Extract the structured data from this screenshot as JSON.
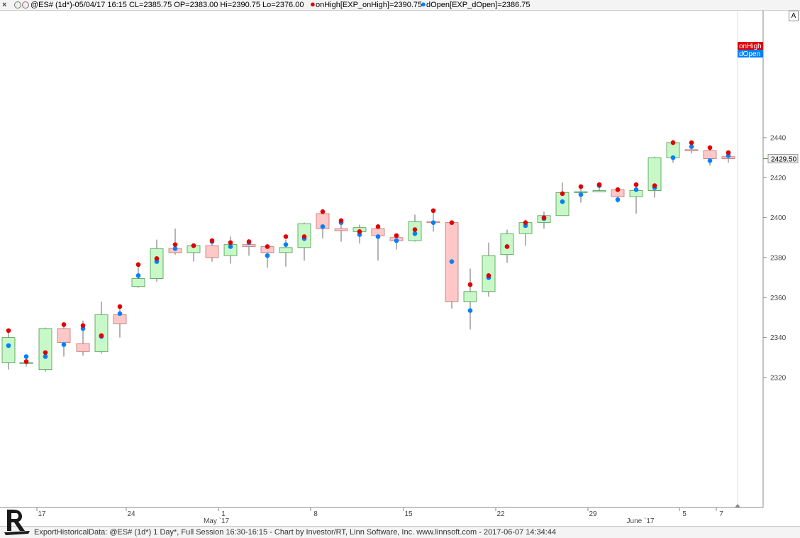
{
  "header": {
    "close_glyph": "×",
    "symbol_info": "@ES# (1d*)-05/04/17 16:15 CL=2385.75 OP=2383.00 Hi=2390.75 Lo=2376.00",
    "onhigh_label": "onHigh[EXP_onHigh]=2390.75",
    "dopen_label": "dOpen[EXP_dOpen]=2386.75",
    "scale_button": "A"
  },
  "colors": {
    "up_fill": "#c8f8c8",
    "down_fill": "#ffc8c8",
    "candle_border_up": "#4a9a4a",
    "candle_border_down": "#c07070",
    "wick": "#8c8c8c",
    "onhigh_dot": "#e00000",
    "dopen_dot": "#0080ff"
  },
  "chart_data": {
    "type": "candlestick",
    "ylim": [
      2318,
      2442
    ],
    "y_ticks": [
      "2440",
      "2420",
      "2400",
      "2380",
      "2360",
      "2340",
      "2320"
    ],
    "x_ticks": [
      "17",
      "24",
      "1",
      "8",
      "15",
      "22",
      "29",
      "5",
      "7"
    ],
    "month_labels": [
      "May `17",
      "June `17"
    ],
    "last_price_label": "2429.50",
    "legend": [
      "onHigh",
      "dOpen"
    ],
    "candles": [
      {
        "o": 2327.5,
        "h": 2343.5,
        "l": 2324,
        "c": 2340,
        "onHigh": 2343.5,
        "dOpen": 2336
      },
      {
        "o": 2327.5,
        "h": 2330,
        "l": 2325.5,
        "c": 2327.5,
        "onHigh": 2328,
        "dOpen": 2330.5
      },
      {
        "o": 2324,
        "h": 2345,
        "l": 2323,
        "c": 2344.5,
        "onHigh": 2332.5,
        "dOpen": 2330.5
      },
      {
        "o": 2344.5,
        "h": 2346.5,
        "l": 2330.5,
        "c": 2337.5,
        "onHigh": 2346.5,
        "dOpen": 2336.5
      },
      {
        "o": 2337,
        "h": 2348.5,
        "l": 2331,
        "c": 2333,
        "onHigh": 2346,
        "dOpen": 2344.5
      },
      {
        "o": 2333,
        "h": 2358,
        "l": 2332,
        "c": 2351.5,
        "onHigh": 2341,
        "dOpen": 2340.5
      },
      {
        "o": 2351.5,
        "h": 2356,
        "l": 2340,
        "c": 2347,
        "onHigh": 2355.5,
        "dOpen": 2352
      },
      {
        "o": 2365.5,
        "h": 2377,
        "l": 2365,
        "c": 2369.5,
        "onHigh": 2376.5,
        "dOpen": 2371
      },
      {
        "o": 2369.5,
        "h": 2389,
        "l": 2368,
        "c": 2384.5,
        "onHigh": 2379.5,
        "dOpen": 2378
      },
      {
        "o": 2384.5,
        "h": 2394.5,
        "l": 2381.5,
        "c": 2382.5,
        "onHigh": 2386.5,
        "dOpen": 2384.5
      },
      {
        "o": 2382.5,
        "h": 2386.5,
        "l": 2378,
        "c": 2386,
        "onHigh": 2386,
        "dOpen": 2386
      },
      {
        "o": 2386,
        "h": 2388,
        "l": 2378,
        "c": 2380,
        "onHigh": 2388.5,
        "dOpen": 2388
      },
      {
        "o": 2381,
        "h": 2390.5,
        "l": 2377,
        "c": 2386.5,
        "onHigh": 2387.5,
        "dOpen": 2385.5
      },
      {
        "o": 2386.5,
        "h": 2387,
        "l": 2381,
        "c": 2385.5,
        "onHigh": 2388,
        "dOpen": 2387.5
      },
      {
        "o": 2385.5,
        "h": 2386,
        "l": 2375,
        "c": 2382.5,
        "onHigh": 2385.5,
        "dOpen": 2381
      },
      {
        "o": 2382.5,
        "h": 2389,
        "l": 2375.5,
        "c": 2385,
        "onHigh": 2390.5,
        "dOpen": 2386.5
      },
      {
        "o": 2385,
        "h": 2397.5,
        "l": 2378.5,
        "c": 2397,
        "onHigh": 2390.5,
        "dOpen": 2389.5
      },
      {
        "o": 2402,
        "h": 2402.5,
        "l": 2389.5,
        "c": 2394.5,
        "onHigh": 2403,
        "dOpen": 2395.5
      },
      {
        "o": 2394.5,
        "h": 2399.5,
        "l": 2388,
        "c": 2393.5,
        "onHigh": 2398.5,
        "dOpen": 2397.5
      },
      {
        "o": 2393,
        "h": 2396.5,
        "l": 2387,
        "c": 2395,
        "onHigh": 2393,
        "dOpen": 2391.5
      },
      {
        "o": 2394.5,
        "h": 2394.5,
        "l": 2378.5,
        "c": 2391,
        "onHigh": 2395.5,
        "dOpen": 2390.5
      },
      {
        "o": 2390,
        "h": 2390,
        "l": 2384,
        "c": 2388.5,
        "onHigh": 2391,
        "dOpen": 2388.5
      },
      {
        "o": 2388.5,
        "h": 2401.5,
        "l": 2388,
        "c": 2398,
        "onHigh": 2394,
        "dOpen": 2392
      },
      {
        "o": 2398,
        "h": 2402.5,
        "l": 2393,
        "c": 2397.5,
        "onHigh": 2403.5,
        "dOpen": 2397.5
      },
      {
        "o": 2397.5,
        "h": 2397.5,
        "l": 2354.5,
        "c": 2358,
        "onHigh": 2397.5,
        "dOpen": 2378
      },
      {
        "o": 2358,
        "h": 2374.5,
        "l": 2344,
        "c": 2363,
        "onHigh": 2366.5,
        "dOpen": 2353.5
      },
      {
        "o": 2363,
        "h": 2387.5,
        "l": 2360.5,
        "c": 2381,
        "onHigh": 2371,
        "dOpen": 2370
      },
      {
        "o": 2381.5,
        "h": 2394,
        "l": 2377.5,
        "c": 2392,
        "onHigh": 2385.5,
        "dOpen": 2385.5
      },
      {
        "o": 2392,
        "h": 2399,
        "l": 2386,
        "c": 2397.5,
        "onHigh": 2397.5,
        "dOpen": 2396
      },
      {
        "o": 2397.5,
        "h": 2403,
        "l": 2394.5,
        "c": 2401,
        "onHigh": 2400,
        "dOpen": 2399.5
      },
      {
        "o": 2401,
        "h": 2417.5,
        "l": 2401,
        "c": 2412.5,
        "onHigh": 2412,
        "dOpen": 2408
      },
      {
        "o": 2412.5,
        "h": 2415,
        "l": 2407.5,
        "c": 2413,
        "onHigh": 2415.5,
        "dOpen": 2411.5
      },
      {
        "o": 2413.5,
        "h": 2417,
        "l": 2413.5,
        "c": 2413.5,
        "onHigh": 2416.5,
        "dOpen": 2416
      },
      {
        "o": 2414,
        "h": 2414.5,
        "l": 2407.5,
        "c": 2410.5,
        "onHigh": 2414,
        "dOpen": 2409
      },
      {
        "o": 2410.5,
        "h": 2415,
        "l": 2402,
        "c": 2413.5,
        "onHigh": 2416.5,
        "dOpen": 2414
      },
      {
        "o": 2413.5,
        "h": 2430.5,
        "l": 2410,
        "c": 2430,
        "onHigh": 2416,
        "dOpen": 2415
      },
      {
        "o": 2430,
        "h": 2439,
        "l": 2427.5,
        "c": 2437.5,
        "onHigh": 2437.5,
        "dOpen": 2430
      },
      {
        "o": 2434,
        "h": 2438.5,
        "l": 2432,
        "c": 2433.5,
        "onHigh": 2437.5,
        "dOpen": 2435.5
      },
      {
        "o": 2433.5,
        "h": 2434,
        "l": 2426,
        "c": 2429.5,
        "onHigh": 2435,
        "dOpen": 2428.5
      },
      {
        "o": 2430.5,
        "h": 2433,
        "l": 2427.5,
        "c": 2429.5,
        "onHigh": 2432.5,
        "dOpen": 2431
      }
    ]
  },
  "footer": {
    "text": "ExportHistoricalData: @ES# (1d*) 1 Day*, Full Session 16:30-16:15 - Chart by Investor/RT, Linn Software, Inc. www.linnsoft.com - 2017-06-07 14:34:44"
  }
}
